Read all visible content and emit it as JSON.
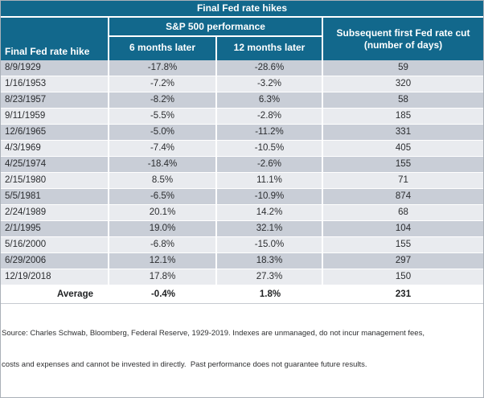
{
  "title": "Final Fed rate hikes",
  "colors": {
    "header_teal": "#12688c",
    "header_text": "#ffffff",
    "row_dark": "#c9ced7",
    "row_light": "#e9ebef",
    "average_bg": "#ffffff",
    "body_text": "#2b2d30"
  },
  "header": {
    "row_label_column": "Final Fed rate hike",
    "group_label": "S&P 500 performance",
    "sub_col_6m": "6 months later",
    "sub_col_12m": "12 months later",
    "last_col_line1": "Subsequent first Fed rate cut",
    "last_col_line2": "(number of days)"
  },
  "table": {
    "rows": [
      {
        "date": "8/9/1929",
        "six_months": "-17.8%",
        "twelve_months": "-28.6%",
        "days": "59"
      },
      {
        "date": "1/16/1953",
        "six_months": "-7.2%",
        "twelve_months": "-3.2%",
        "days": "320"
      },
      {
        "date": "8/23/1957",
        "six_months": "-8.2%",
        "twelve_months": "6.3%",
        "days": "58"
      },
      {
        "date": "9/11/1959",
        "six_months": "-5.5%",
        "twelve_months": "-2.8%",
        "days": "185"
      },
      {
        "date": "12/6/1965",
        "six_months": "-5.0%",
        "twelve_months": "-11.2%",
        "days": "331"
      },
      {
        "date": "4/3/1969",
        "six_months": "-7.4%",
        "twelve_months": "-10.5%",
        "days": "405"
      },
      {
        "date": "4/25/1974",
        "six_months": "-18.4%",
        "twelve_months": "-2.6%",
        "days": "155"
      },
      {
        "date": "2/15/1980",
        "six_months": "8.5%",
        "twelve_months": "11.1%",
        "days": "71"
      },
      {
        "date": "5/5/1981",
        "six_months": "-6.5%",
        "twelve_months": "-10.9%",
        "days": "874"
      },
      {
        "date": "2/24/1989",
        "six_months": "20.1%",
        "twelve_months": "14.2%",
        "days": "68"
      },
      {
        "date": "2/1/1995",
        "six_months": "19.0%",
        "twelve_months": "32.1%",
        "days": "104"
      },
      {
        "date": "5/16/2000",
        "six_months": "-6.8%",
        "twelve_months": "-15.0%",
        "days": "155"
      },
      {
        "date": "6/29/2006",
        "six_months": "12.1%",
        "twelve_months": "18.3%",
        "days": "297"
      },
      {
        "date": "12/19/2018",
        "six_months": "17.8%",
        "twelve_months": "27.3%",
        "days": "150"
      }
    ],
    "average": {
      "label": "Average",
      "six_months": "-0.4%",
      "twelve_months": "1.8%",
      "days": "231"
    }
  },
  "footnote": {
    "line1": "Source: Charles Schwab, Bloomberg, Federal Reserve, 1929-2019. Indexes are unmanaged, do not incur management fees,",
    "line2": "costs and expenses and cannot be invested in directly.  Past performance does not guarantee future results."
  },
  "chart_data": {
    "type": "table",
    "title": "Final Fed rate hikes",
    "column_groups": [
      {
        "label": "S&P 500 performance",
        "columns": [
          "6 months later",
          "12 months later"
        ]
      }
    ],
    "columns": [
      "Final Fed rate hike",
      "6 months later",
      "12 months later",
      "Subsequent first Fed rate cut (number of days)"
    ],
    "rows": [
      [
        "8/9/1929",
        -17.8,
        -28.6,
        59
      ],
      [
        "1/16/1953",
        -7.2,
        -3.2,
        320
      ],
      [
        "8/23/1957",
        -8.2,
        6.3,
        58
      ],
      [
        "9/11/1959",
        -5.5,
        -2.8,
        185
      ],
      [
        "12/6/1965",
        -5.0,
        -11.2,
        331
      ],
      [
        "4/3/1969",
        -7.4,
        -10.5,
        405
      ],
      [
        "4/25/1974",
        -18.4,
        -2.6,
        155
      ],
      [
        "2/15/1980",
        8.5,
        11.1,
        71
      ],
      [
        "5/5/1981",
        -6.5,
        -10.9,
        874
      ],
      [
        "2/24/1989",
        20.1,
        14.2,
        68
      ],
      [
        "2/1/1995",
        19.0,
        32.1,
        104
      ],
      [
        "5/16/2000",
        -6.8,
        -15.0,
        155
      ],
      [
        "6/29/2006",
        12.1,
        18.3,
        297
      ],
      [
        "12/19/2018",
        17.8,
        27.3,
        150
      ]
    ],
    "average": [
      "Average",
      -0.4,
      1.8,
      231
    ],
    "units": {
      "performance_columns": "percent",
      "rate_cut_column": "days"
    }
  }
}
